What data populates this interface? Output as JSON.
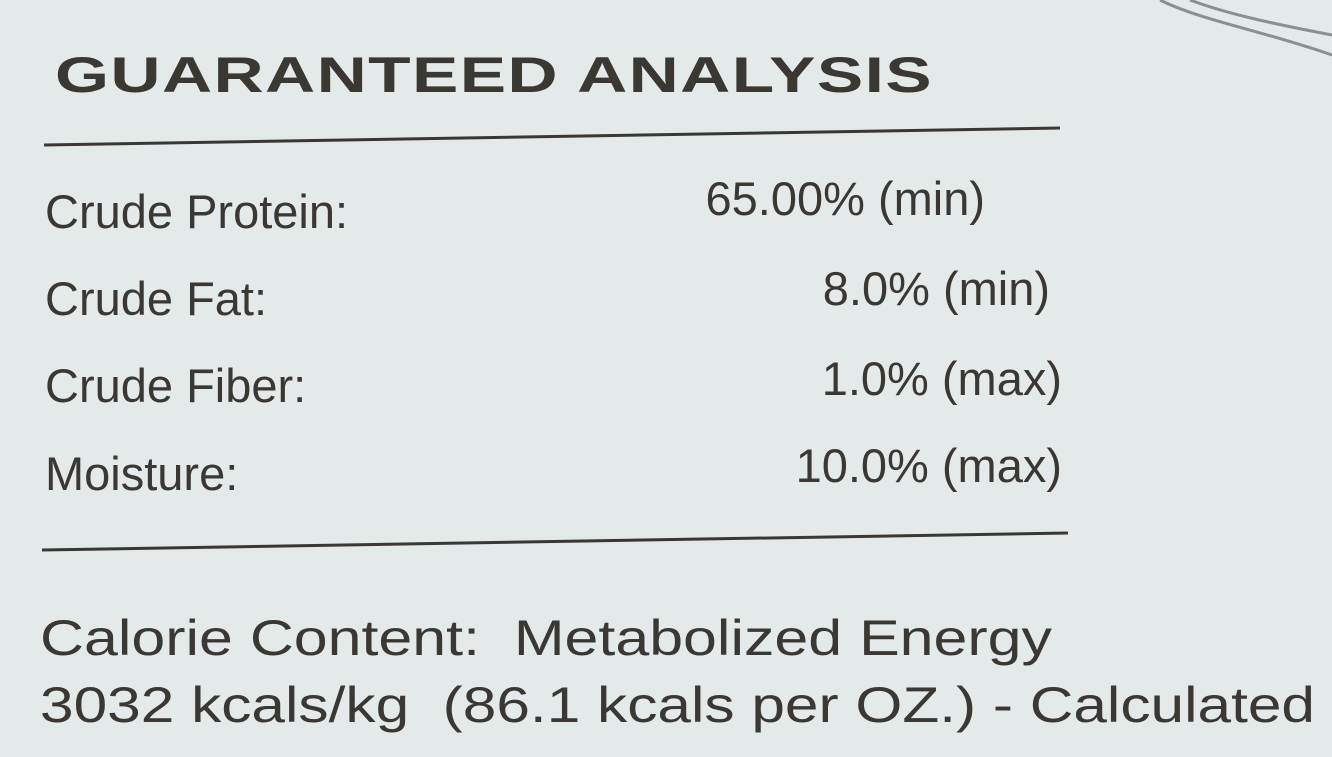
{
  "header": {
    "title": "GUARANTEED ANALYSIS"
  },
  "table": {
    "rows": [
      [
        "Crude Protein:",
        "65.00% (min)"
      ],
      [
        "Crude Fat:",
        "8.0% (min)"
      ],
      [
        "Crude Fiber:",
        "1.0% (max)"
      ],
      [
        "Moisture:",
        "10.0% (max)"
      ]
    ]
  },
  "calorie": {
    "lines": [
      "Calorie Content:  Metabolized Energy",
      "3032 kcals/kg  (86.1 kcals per OZ.) - Calculated"
    ]
  }
}
